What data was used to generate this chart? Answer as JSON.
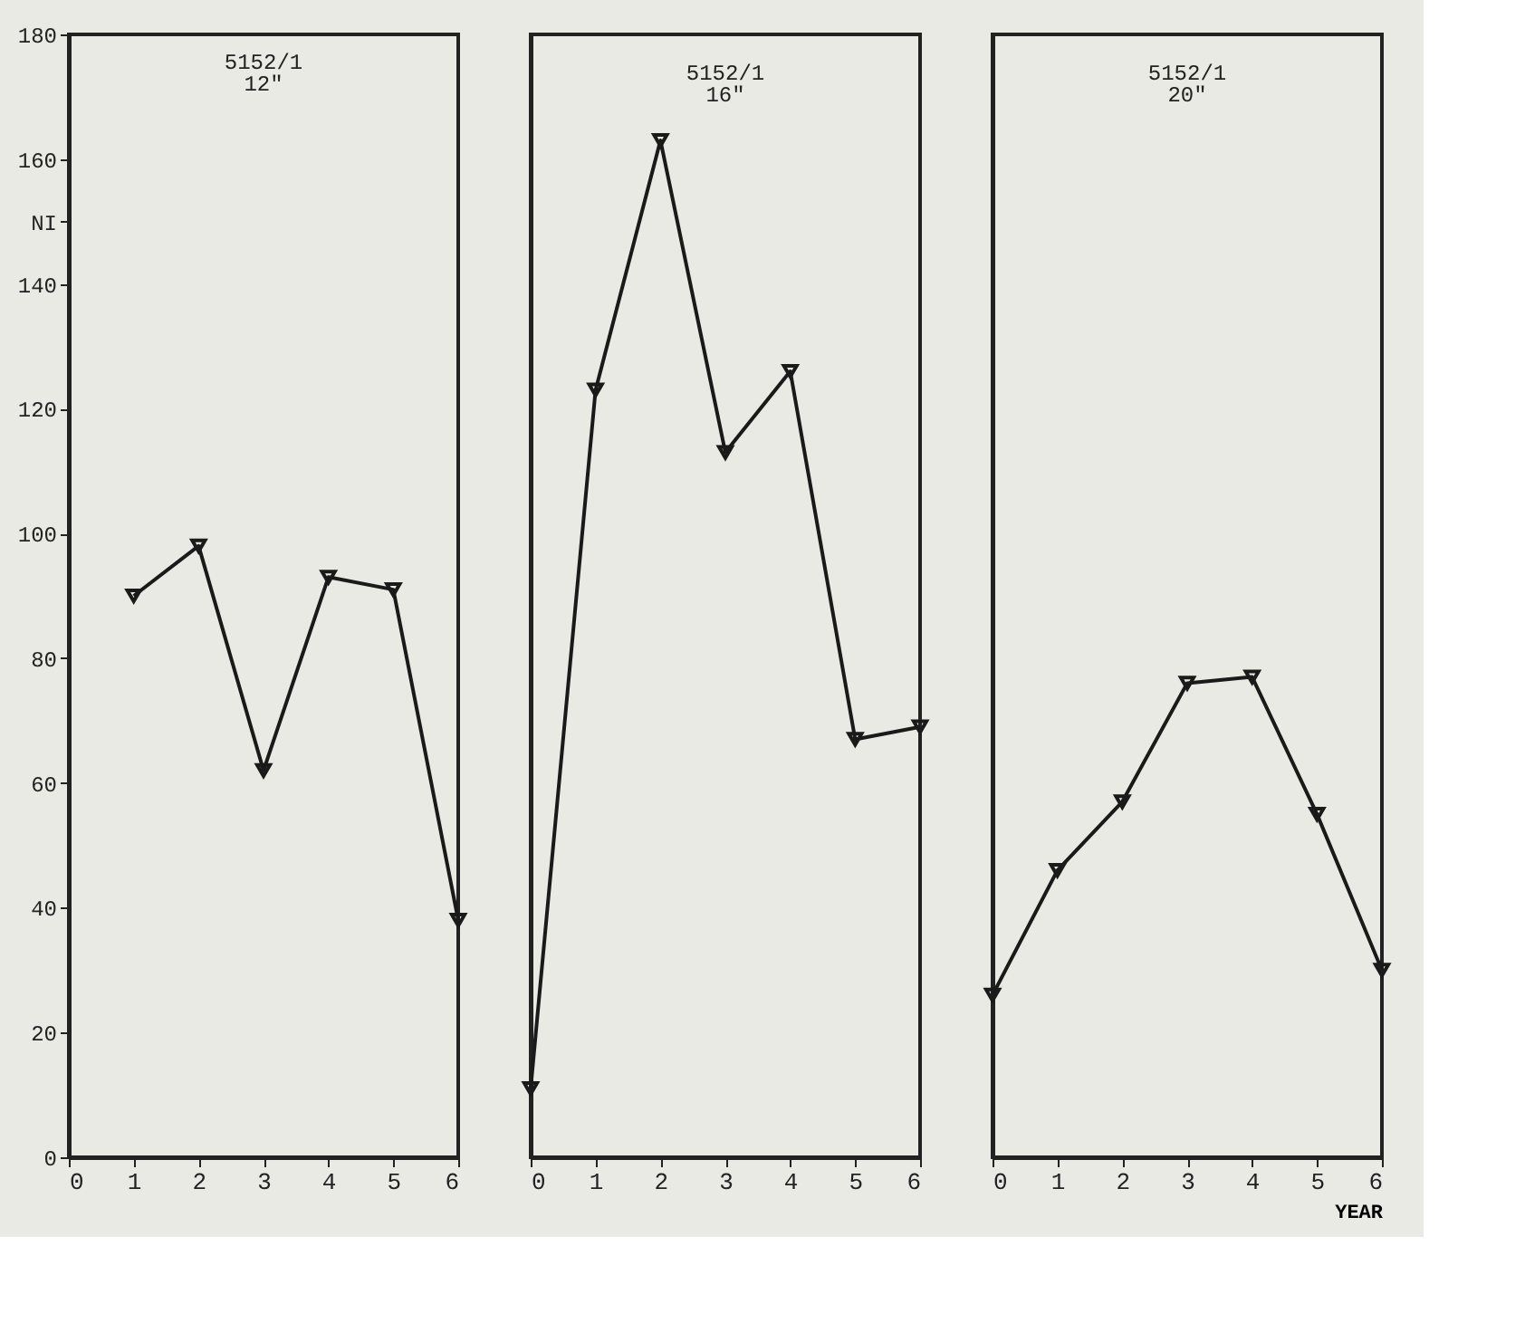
{
  "chart_data": [
    {
      "type": "line",
      "title": "5152/1",
      "subtitle": "12\"",
      "x": [
        1,
        2,
        3,
        4,
        5,
        6
      ],
      "xlim": [
        0,
        6
      ],
      "xticks": [
        0,
        1,
        2,
        3,
        4,
        5,
        6
      ],
      "ylim": [
        0,
        180
      ],
      "yticks": [
        0,
        20,
        40,
        60,
        80,
        100,
        120,
        140,
        {
          "value": 150,
          "label": "NI"
        },
        160,
        180
      ],
      "marker": "triangle",
      "line_style": "solid",
      "grid": false,
      "series": [
        {
          "color": "#1a1a1a",
          "values": [
            90,
            98,
            62,
            93,
            91,
            38
          ]
        }
      ]
    },
    {
      "type": "line",
      "title": "5152/1",
      "subtitle": "16\"",
      "x": [
        0,
        1,
        2,
        3,
        4,
        5,
        6
      ],
      "xlim": [
        0,
        6
      ],
      "xticks": [
        0,
        1,
        2,
        3,
        4,
        5,
        6
      ],
      "ylim": [
        0,
        180
      ],
      "yticks": [
        0,
        20,
        40,
        60,
        80,
        100,
        120,
        140,
        160,
        180
      ],
      "tick_labels": "x",
      "marker": "triangle",
      "line_style": "solid",
      "grid": false,
      "series": [
        {
          "color": "#1a1a1a",
          "values": [
            11,
            123,
            163,
            113,
            126,
            67,
            69
          ]
        }
      ]
    },
    {
      "type": "line",
      "title": "5152/1",
      "subtitle": "20\"",
      "xlabel": "YEAR",
      "x": [
        0,
        1,
        2,
        3,
        4,
        5,
        6
      ],
      "xlim": [
        0,
        6
      ],
      "xticks": [
        0,
        1,
        2,
        3,
        4,
        5,
        6
      ],
      "ylim": [
        0,
        180
      ],
      "yticks": [
        0,
        20,
        40,
        60,
        80,
        100,
        120,
        140,
        160,
        180
      ],
      "tick_labels": "x",
      "marker": "triangle",
      "line_style": "solid",
      "grid": false,
      "series": [
        {
          "color": "#1a1a1a",
          "values": [
            26,
            46,
            57,
            76,
            77,
            55,
            30
          ]
        }
      ]
    }
  ]
}
